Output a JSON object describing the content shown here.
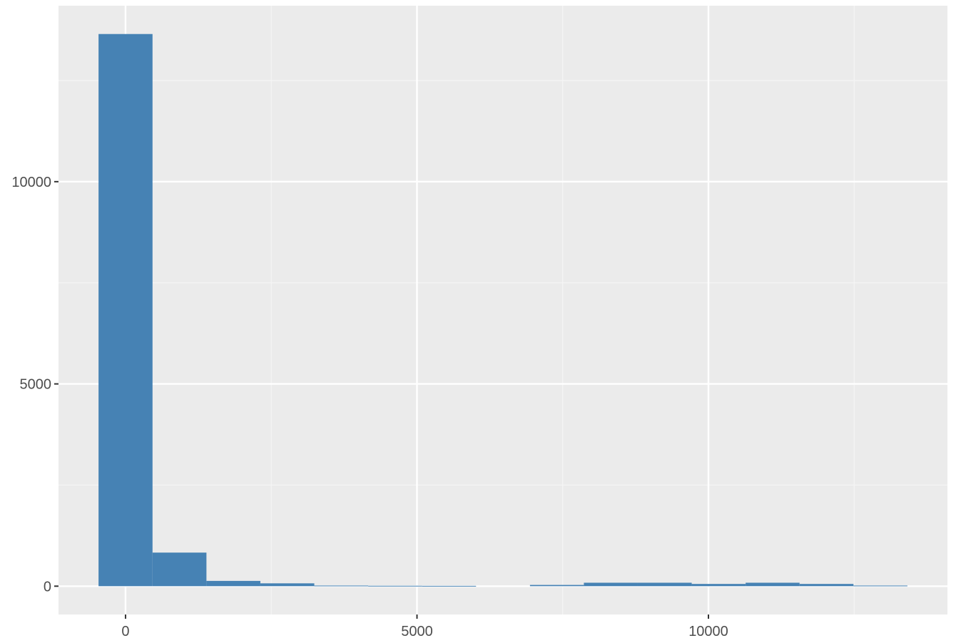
{
  "chart_data": {
    "type": "bar",
    "title": "",
    "xlabel": "",
    "ylabel": "",
    "xlim": [
      -1150,
      14100
    ],
    "ylim": [
      -700,
      14350
    ],
    "x_ticks": [
      {
        "value": 0,
        "label": "0"
      },
      {
        "value": 5000,
        "label": "5000"
      },
      {
        "value": 10000,
        "label": "10000"
      }
    ],
    "y_ticks": [
      {
        "value": 0,
        "label": "0"
      },
      {
        "value": 5000,
        "label": "5000"
      },
      {
        "value": 10000,
        "label": "10000"
      }
    ],
    "x_minor": [
      2500,
      7500,
      12500
    ],
    "y_minor": [
      2500,
      7500,
      12500
    ],
    "bin_width": 925,
    "bins": [
      {
        "start": -463,
        "end": 463,
        "count": 13650
      },
      {
        "start": 463,
        "end": 1388,
        "count": 830
      },
      {
        "start": 1388,
        "end": 2313,
        "count": 130
      },
      {
        "start": 2313,
        "end": 3238,
        "count": 70
      },
      {
        "start": 3238,
        "end": 4163,
        "count": 15
      },
      {
        "start": 4163,
        "end": 5088,
        "count": 10
      },
      {
        "start": 5088,
        "end": 6013,
        "count": 8
      },
      {
        "start": 6013,
        "end": 6938,
        "count": 0
      },
      {
        "start": 6938,
        "end": 7863,
        "count": 30
      },
      {
        "start": 7863,
        "end": 8788,
        "count": 85
      },
      {
        "start": 8788,
        "end": 9713,
        "count": 85
      },
      {
        "start": 9713,
        "end": 10638,
        "count": 55
      },
      {
        "start": 10638,
        "end": 11563,
        "count": 85
      },
      {
        "start": 11563,
        "end": 12488,
        "count": 55
      },
      {
        "start": 12488,
        "end": 13413,
        "count": 15
      }
    ],
    "grid": true,
    "colors": {
      "bar": "#4682b4",
      "panel": "#ebebeb",
      "grid_major": "#ffffff",
      "grid_minor": "#f5f5f5",
      "tick_label": "#4d4d4d",
      "tick_mark": "#333333"
    }
  }
}
